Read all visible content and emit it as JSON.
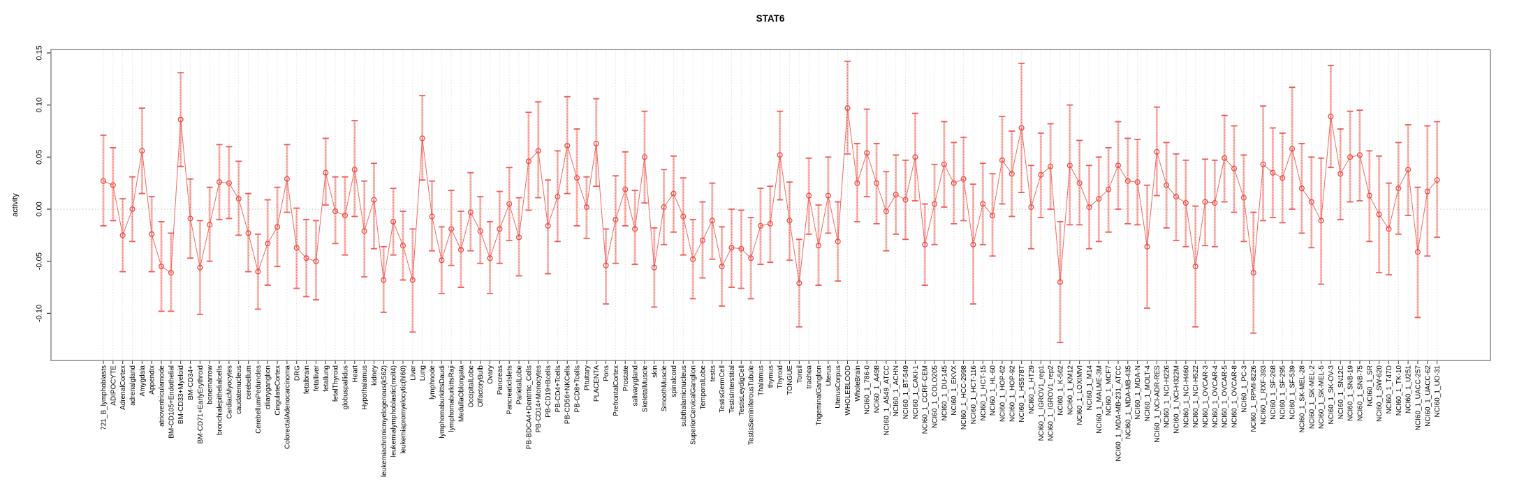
{
  "title": "STAT6",
  "colors": {
    "series_red": "#f2564d",
    "point_stroke": "#ef4a42",
    "error_band": "#f7aba5",
    "error_cap": "#ef5550",
    "grid_vertical": "#e0e0e0",
    "grid_zero": "#c0c0c0",
    "box_border": "#8a8a8a",
    "tick": "#333333",
    "text": "#000000"
  },
  "chart_data": {
    "type": "line",
    "title": "STAT6",
    "xlabel": "",
    "ylabel": "activity",
    "ylim": [
      -0.145,
      0.153
    ],
    "yticks": [
      0.15,
      0.1,
      0.05,
      0.0,
      -0.05,
      -0.1
    ],
    "ytick_labels": [
      "0.15",
      "0.10",
      "0.05",
      "0.00",
      "-0.05",
      "-0.10"
    ],
    "grid": "light dashed vertical gridline at every category; dotted horizontal line at y=0",
    "legend_position": "none",
    "marker": "open-circle connected by line, with confidence-interval error bars",
    "categories": [
      "721_B_lymphoblasts",
      "ADIPOCYTE",
      "AdrenalCortex",
      "adrenalgland",
      "Amygdala",
      "Appendix",
      "atrioventricularnode",
      "BM-CD105+Endothelial",
      "BM-CD33+Myeloid",
      "BM-CD34+",
      "BM-CD71+EarlyErythroid",
      "bonemarrow",
      "bronchialepithelialcells",
      "CardiacMyocytes",
      "caudatenucleus",
      "cerebellum",
      "CerebellumPeduncles",
      "ciliaryganglion",
      "CingulateCortex",
      "ColorectalAdenocarcinoma",
      "DRG",
      "fetalbrain",
      "fetalliver",
      "fetallung",
      "fetalThyroid",
      "globuspallidus",
      "Heart",
      "Hypothalamus",
      "kidney",
      "leukemiachronicmyelogenous(k562)",
      "leukemialymphoblastic(molt4)",
      "leukemiapromyelocytic(hl60)",
      "Liver",
      "Lung",
      "lymphnode",
      "lymphomaburkittsDaudi",
      "lymphomaburkittsRaji",
      "MedullaOblongata",
      "OccipitalLobe",
      "OlfactoryBulb",
      "Ovary",
      "Pancreas",
      "PancreaticIslets",
      "ParietalLobe",
      "PB-BDCA4+Dentritic_Cells",
      "PB-CD14+Monocytes",
      "PB-CD19+Bcells",
      "PB-CD4+Tcells",
      "PB-CD56+NKCells",
      "PB-CD8+Tcells",
      "Pituitary",
      "PLACENTA",
      "Pons",
      "PrefrontalCortex",
      "Prostate",
      "salivarygland",
      "SkeletalMuscle",
      "skin",
      "SmoothMuscle",
      "spinalcord",
      "subthalamicnucleus",
      "SuperiorCervicalGanglion",
      "TemporalLobe",
      "testis",
      "TestisGermCell",
      "TestisInterstitial",
      "TestisLeydigCell",
      "TestisSeminiferousTubule",
      "Thalamus",
      "thymus",
      "Thyroid",
      "TONGUE",
      "Tonsil",
      "trachea",
      "TrigeminalGanglion",
      "Uterus",
      "UterusCorpus",
      "WHOLEBLOOD",
      "WholeBrain",
      "NCI60_1_786-0",
      "NCI60_1_A498",
      "NCI60_1_A549_ATCC",
      "NCI60_1_ACHN",
      "NCI60_1_BT-549",
      "NCI60_1_CAKI-1",
      "NCI60_1_CCRF-CEM",
      "NCI60_1_COLO205",
      "NCI60_1_DU-145",
      "NCI60_1_EKVX",
      "NCI60_1_HCC-2998",
      "NCI60_1_HCT-116",
      "NCI60_1_HCT-15",
      "NCI60_1_HL-60",
      "NCI60_1_HOP-62",
      "NCI60_1_HOP-92",
      "NCI60_1_HS578T",
      "NCI60_1_HT29",
      "NCI60_1_IGROV1_rep1",
      "NCI60_1_IGROV1_rep2",
      "NCI60_1_K-562",
      "NCI60_1_KM12",
      "NCI60_1_LOXIMVI",
      "NCI60_1_M14",
      "NCI60_1_MALME-3M",
      "NCI60_1_MCF7",
      "NCI60_1_MDA-MB-231_ATCC",
      "NCI60_1_MDA-MB-435",
      "NCI60_1_MDA-N",
      "NCI60_1_MOLT-4",
      "NCI60_1_NCI-ADR-RES",
      "NCI60_1_NCI-H226",
      "NCI60_1_NCI-H322M",
      "NCI60_1_NCI-H460",
      "NCI60_1_NCI-H522",
      "NCI60_1_OVCAR-3",
      "NCI60_1_OVCAR-4",
      "NCI60_1_OVCAR-5",
      "NCI60_1_OVCAR-8",
      "NCI60_1_PC-3",
      "NCI60_1_RPMI-8226",
      "NCI60_1_RXF-393",
      "NCI60_1_SF-268",
      "NCI60_1_SF-295",
      "NCI60_1_SF-539",
      "NCI60_1_SK-MEL-28",
      "NCI60_1_SK-MEL-2",
      "NCI60_1_SK-MEL-5",
      "NCI60_1_SK-OV-3",
      "NCI60_1_SN12C",
      "NCI60_1_SNB-19",
      "NCI60_1_SNB-75",
      "NCI60_1_SR",
      "NCI60_1_SW-620",
      "NCI60_1_T47D",
      "NCI60_1_TK-10",
      "NCI60_1_U251",
      "NCI60_1_UACC-257",
      "NCI60_1_UACC-62",
      "NCI60_1_UO-31"
    ],
    "series": [
      {
        "name": "activity",
        "values": [
          0.027,
          0.023,
          -0.025,
          0.0,
          0.056,
          -0.024,
          -0.055,
          -0.061,
          0.086,
          -0.009,
          -0.056,
          -0.015,
          0.026,
          0.025,
          0.01,
          -0.023,
          -0.06,
          -0.033,
          -0.017,
          0.029,
          -0.037,
          -0.047,
          -0.05,
          0.035,
          -0.002,
          -0.006,
          0.038,
          -0.021,
          0.009,
          -0.068,
          -0.012,
          -0.035,
          -0.068,
          0.068,
          -0.007,
          -0.049,
          -0.019,
          -0.039,
          -0.003,
          -0.021,
          -0.047,
          -0.019,
          0.005,
          -0.027,
          0.046,
          0.056,
          -0.016,
          0.012,
          0.061,
          0.03,
          0.002,
          0.063,
          -0.054,
          -0.01,
          0.019,
          -0.019,
          0.05,
          -0.056,
          0.002,
          0.015,
          -0.007,
          -0.048,
          -0.03,
          -0.011,
          -0.055,
          -0.037,
          -0.038,
          -0.047,
          -0.016,
          -0.014,
          0.052,
          -0.011,
          -0.071,
          0.013,
          -0.035,
          0.013,
          -0.031,
          0.097,
          0.025,
          0.054,
          0.025,
          -0.002,
          0.014,
          0.009,
          0.05,
          -0.034,
          0.005,
          0.043,
          0.025,
          0.029,
          -0.034,
          0.005,
          -0.006,
          0.047,
          0.034,
          0.078,
          0.002,
          0.033,
          0.041,
          -0.07,
          0.042,
          0.025,
          0.002,
          0.01,
          0.019,
          0.042,
          0.027,
          0.026,
          -0.036,
          0.055,
          0.023,
          0.012,
          0.006,
          -0.055,
          0.007,
          0.006,
          0.049,
          0.039,
          0.011,
          -0.061,
          0.043,
          0.035,
          0.03,
          0.058,
          0.02,
          0.007,
          -0.011,
          0.089,
          0.034,
          0.05,
          0.052,
          0.013,
          -0.005,
          -0.019,
          0.02,
          0.038,
          -0.041,
          0.017,
          0.028
        ],
        "ci_low": [
          -0.016,
          -0.011,
          -0.06,
          -0.031,
          0.015,
          -0.06,
          -0.098,
          -0.098,
          0.041,
          -0.047,
          -0.101,
          -0.05,
          -0.01,
          -0.009,
          -0.025,
          -0.06,
          -0.096,
          -0.073,
          -0.055,
          -0.003,
          -0.076,
          -0.084,
          -0.087,
          0.004,
          -0.033,
          -0.044,
          -0.007,
          -0.065,
          -0.038,
          -0.099,
          -0.044,
          -0.068,
          -0.118,
          0.028,
          -0.04,
          -0.081,
          -0.054,
          -0.075,
          -0.04,
          -0.052,
          -0.081,
          -0.052,
          -0.03,
          -0.064,
          -0.001,
          0.011,
          -0.062,
          -0.031,
          0.015,
          -0.016,
          -0.028,
          0.022,
          -0.091,
          -0.052,
          -0.016,
          -0.053,
          0.006,
          -0.094,
          -0.034,
          -0.022,
          -0.044,
          -0.086,
          -0.066,
          -0.048,
          -0.093,
          -0.075,
          -0.076,
          -0.086,
          -0.053,
          -0.051,
          0.009,
          -0.049,
          -0.113,
          -0.024,
          -0.073,
          -0.023,
          -0.069,
          0.053,
          -0.012,
          0.012,
          -0.014,
          -0.04,
          -0.024,
          -0.029,
          0.008,
          -0.073,
          -0.034,
          0.002,
          -0.014,
          -0.011,
          -0.091,
          -0.034,
          -0.045,
          0.005,
          -0.007,
          0.016,
          -0.038,
          -0.008,
          0.0,
          -0.128,
          -0.015,
          -0.015,
          -0.038,
          -0.031,
          -0.022,
          0.0,
          -0.014,
          -0.015,
          -0.095,
          0.013,
          -0.018,
          -0.03,
          -0.036,
          -0.113,
          -0.035,
          -0.036,
          0.007,
          -0.003,
          -0.031,
          -0.119,
          -0.011,
          -0.008,
          -0.013,
          0.0,
          -0.023,
          -0.037,
          -0.072,
          0.04,
          -0.01,
          0.007,
          0.008,
          -0.031,
          -0.061,
          -0.063,
          -0.024,
          -0.006,
          -0.104,
          -0.045,
          -0.027
        ],
        "ci_high": [
          0.071,
          0.059,
          0.01,
          0.031,
          0.097,
          0.012,
          -0.012,
          -0.023,
          0.131,
          0.029,
          -0.011,
          0.021,
          0.062,
          0.06,
          0.046,
          0.015,
          -0.024,
          0.009,
          0.021,
          0.062,
          0.001,
          -0.01,
          -0.011,
          0.068,
          0.031,
          0.031,
          0.085,
          0.027,
          0.044,
          -0.036,
          0.02,
          -0.002,
          -0.019,
          0.109,
          0.027,
          -0.017,
          0.018,
          -0.002,
          0.035,
          0.012,
          -0.012,
          0.017,
          0.04,
          0.011,
          0.093,
          0.103,
          0.028,
          0.056,
          0.108,
          0.077,
          0.031,
          0.106,
          -0.019,
          0.032,
          0.055,
          0.018,
          0.094,
          -0.018,
          0.038,
          0.051,
          0.03,
          -0.01,
          0.007,
          0.025,
          -0.017,
          0.0,
          -0.001,
          -0.008,
          0.02,
          0.022,
          0.094,
          0.026,
          -0.029,
          0.049,
          0.004,
          0.05,
          0.007,
          0.142,
          0.063,
          0.096,
          0.063,
          0.036,
          0.052,
          0.047,
          0.092,
          0.005,
          0.043,
          0.084,
          0.064,
          0.069,
          0.024,
          0.044,
          0.034,
          0.089,
          0.075,
          0.14,
          0.042,
          0.073,
          0.082,
          -0.012,
          0.1,
          0.066,
          0.042,
          0.05,
          0.059,
          0.084,
          0.068,
          0.067,
          0.023,
          0.098,
          0.064,
          0.053,
          0.047,
          0.003,
          0.048,
          0.047,
          0.09,
          0.08,
          0.052,
          -0.003,
          0.099,
          0.078,
          0.073,
          0.117,
          0.063,
          0.05,
          0.049,
          0.138,
          0.077,
          0.094,
          0.095,
          0.056,
          0.051,
          0.025,
          0.064,
          0.081,
          0.021,
          0.08,
          0.084
        ]
      }
    ]
  }
}
